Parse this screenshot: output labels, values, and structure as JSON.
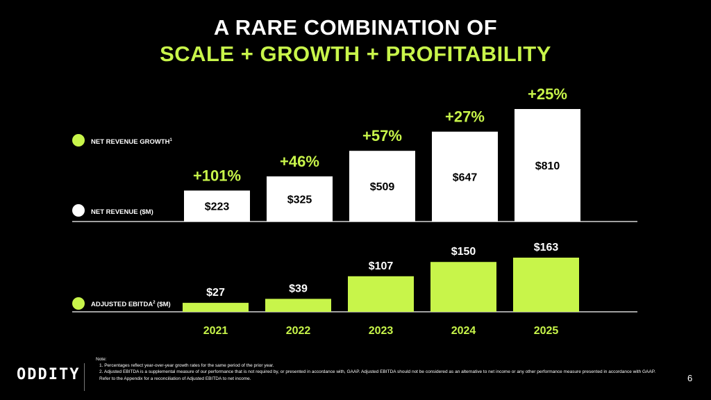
{
  "title": {
    "line1": "A RARE COMBINATION OF",
    "line2": "SCALE + GROWTH + PROFITABILITY"
  },
  "colors": {
    "accent": "#c8f54a",
    "revenue_bar": "#ffffff",
    "background": "#000000"
  },
  "legend": {
    "growth_label": "NET REVENUE GROWTH",
    "growth_sup": "1",
    "revenue_label": "NET REVENUE ($M)",
    "ebitda_label": "ADJUSTED EBITDA",
    "ebitda_sup": "2",
    "ebitda_unit": " ($M)"
  },
  "chart_data": {
    "type": "bar",
    "categories": [
      "2021",
      "2022",
      "2023",
      "2024",
      "2025"
    ],
    "series": [
      {
        "name": "NET REVENUE ($M)",
        "values": [
          223,
          325,
          509,
          647,
          810
        ],
        "labels": [
          "$223",
          "$325",
          "$509",
          "$647",
          "$810"
        ]
      },
      {
        "name": "NET REVENUE GROWTH",
        "values": [
          101,
          46,
          57,
          27,
          25
        ],
        "labels": [
          "+101%",
          "+46%",
          "+57%",
          "+27%",
          "+25%"
        ]
      },
      {
        "name": "ADJUSTED EBITDA ($M)",
        "values": [
          27,
          39,
          107,
          150,
          163
        ],
        "labels": [
          "$27",
          "$39",
          "$107",
          "$150",
          "$163"
        ]
      }
    ],
    "title": "A RARE COMBINATION OF SCALE + GROWTH + PROFITABILITY",
    "xlabel": "",
    "ylabel": ""
  },
  "notes": {
    "heading": "Note:",
    "items": [
      "1. Percentages reflect year-over-year growth rates for the same period of the prior year.",
      "2. Adjusted EBITDA is a supplemental measure of our performance that is not required by, or presented in accordance with, GAAP. Adjusted EBITDA should not be considered as an alternative to net income or any other performance measure presented in accordance with GAAP. Refer to the Appendix for a reconciliation of Adjusted EBITDA to net income."
    ]
  },
  "logo": "ODDITY",
  "page_number": "6"
}
